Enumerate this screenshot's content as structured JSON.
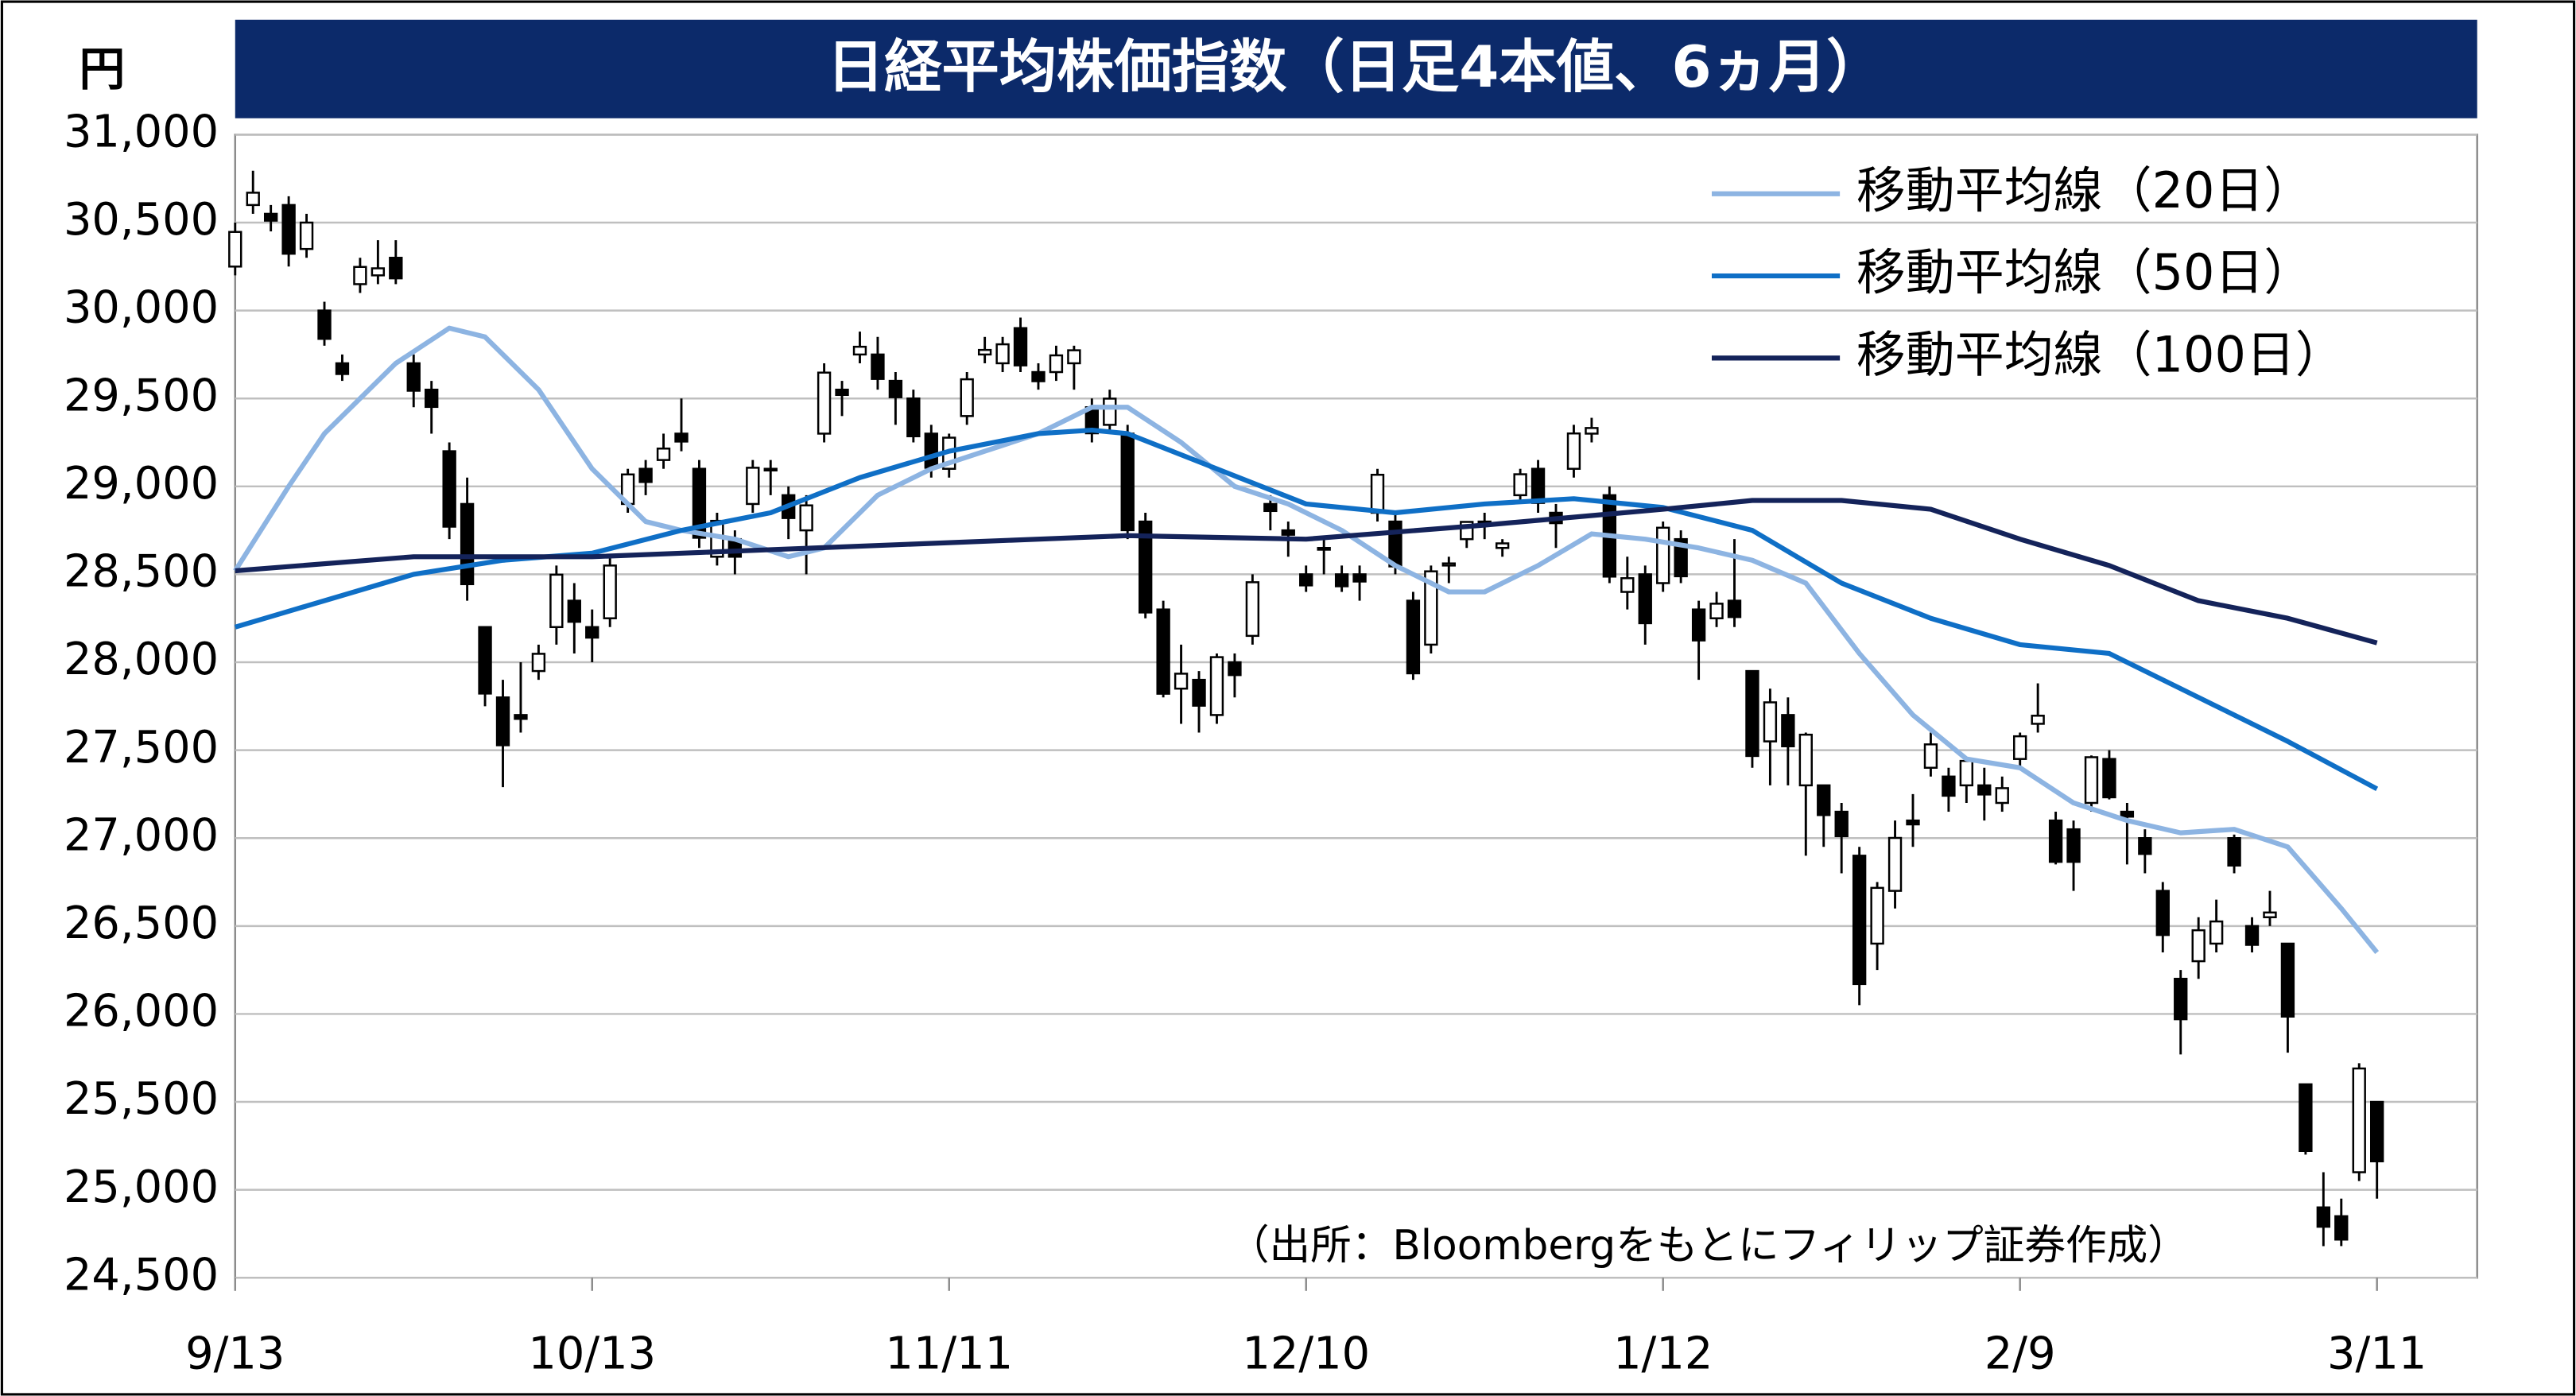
{
  "chart_data": {
    "type": "candlestick",
    "title": "日経平均株価指数（日足4本値、6ヵ月）",
    "y_unit_label": "円",
    "source": "（出所：Bloombergをもとにフィリップ証券作成）",
    "categories": [
      "9/13",
      null,
      null,
      null,
      null,
      null,
      null,
      null,
      null,
      null,
      null,
      null,
      null,
      null,
      null,
      null,
      null,
      null,
      null,
      null,
      "10/13",
      null,
      null,
      null,
      null,
      null,
      null,
      null,
      null,
      null,
      null,
      null,
      null,
      null,
      null,
      null,
      null,
      null,
      null,
      null,
      "11/11",
      null,
      null,
      null,
      null,
      null,
      null,
      null,
      null,
      null,
      null,
      null,
      null,
      null,
      null,
      null,
      null,
      null,
      null,
      null,
      "12/10",
      null,
      null,
      null,
      null,
      null,
      null,
      null,
      null,
      null,
      null,
      null,
      null,
      null,
      null,
      null,
      null,
      null,
      null,
      null,
      "1/12",
      null,
      null,
      null,
      null,
      null,
      null,
      null,
      null,
      null,
      null,
      null,
      null,
      null,
      null,
      null,
      null,
      null,
      null,
      null,
      "2/9",
      null,
      null,
      null,
      null,
      null,
      null,
      null,
      null,
      null,
      null,
      null,
      null,
      null,
      null,
      null,
      null,
      null,
      null,
      null,
      "3/11"
    ],
    "open": [
      30250,
      30600,
      30550,
      30600,
      30350,
      30000,
      29700,
      30150,
      30200,
      30300,
      29700,
      29550,
      29200,
      28900,
      28200,
      27800,
      27700,
      27950,
      28200,
      28350,
      28200,
      28250,
      28900,
      29100,
      29150,
      29300,
      29100,
      28600,
      28700,
      28900,
      29100,
      28950,
      28750,
      29300,
      29550,
      29750,
      29750,
      29600,
      29500,
      29300,
      29100,
      29400,
      29750,
      29700,
      29900,
      29650,
      29650,
      29700,
      29450,
      29350,
      29300,
      28800,
      28300,
      27850,
      27900,
      27700,
      28000,
      28150,
      28900,
      28750,
      28500,
      28650,
      28500,
      28500,
      28850,
      28800,
      28350,
      28100,
      28550,
      28700,
      28800,
      28650,
      28950,
      29100,
      28850,
      29100,
      29300,
      28950,
      28400,
      28500,
      28450,
      28700,
      28300,
      28250,
      28350,
      27950,
      27550,
      27700,
      27300,
      27300,
      27150,
      26900,
      26400,
      26700,
      27100,
      27400,
      27350,
      27300,
      27300,
      27200,
      27450,
      27650,
      27100,
      27050,
      27200,
      27450,
      27150,
      27000,
      26700,
      26200,
      26300,
      26400,
      27000,
      26500,
      26550,
      26400,
      25600,
      24900,
      24850,
      25100,
      25500
    ],
    "high": [
      30500,
      30795,
      30600,
      30650,
      30550,
      30050,
      29750,
      30300,
      30400,
      30400,
      29750,
      29600,
      29250,
      29050,
      28200,
      27900,
      28000,
      28100,
      28550,
      28450,
      28300,
      28600,
      29100,
      29150,
      29300,
      29500,
      29150,
      28850,
      28750,
      29150,
      29150,
      29000,
      28950,
      29700,
      29600,
      29880,
      29850,
      29650,
      29550,
      29350,
      29300,
      29650,
      29850,
      29850,
      29960,
      29700,
      29800,
      29800,
      29500,
      29550,
      29350,
      28850,
      28350,
      28100,
      27950,
      28050,
      28050,
      28500,
      28950,
      28800,
      28550,
      28700,
      28550,
      28550,
      29100,
      28850,
      28400,
      28550,
      28600,
      28800,
      28850,
      28700,
      29100,
      29150,
      28900,
      29350,
      29390,
      29000,
      28600,
      28550,
      28800,
      28750,
      28350,
      28400,
      28700,
      27950,
      27850,
      27800,
      27600,
      27300,
      27200,
      26950,
      26750,
      27100,
      27250,
      27600,
      27400,
      27450,
      27400,
      27350,
      27600,
      27880,
      27150,
      27100,
      27470,
      27500,
      27200,
      27050,
      26750,
      26250,
      26550,
      26650,
      27020,
      26550,
      26700,
      26400,
      25600,
      25100,
      24950,
      25720,
      25500
    ],
    "low": [
      30200,
      30550,
      30450,
      30250,
      30300,
      29800,
      29600,
      30100,
      30150,
      30150,
      29450,
      29300,
      28700,
      28350,
      27750,
      27290,
      27600,
      27900,
      28100,
      28050,
      28000,
      28200,
      28850,
      28950,
      29100,
      29200,
      28650,
      28550,
      28500,
      28850,
      28950,
      28700,
      28500,
      29250,
      29400,
      29700,
      29550,
      29350,
      29250,
      29050,
      29050,
      29350,
      29700,
      29650,
      29650,
      29550,
      29600,
      29550,
      29250,
      29300,
      28700,
      28250,
      27800,
      27650,
      27600,
      27650,
      27800,
      28100,
      28750,
      28600,
      28400,
      28500,
      28400,
      28350,
      28800,
      28500,
      27900,
      28050,
      28450,
      28650,
      28700,
      28600,
      28900,
      28850,
      28650,
      29050,
      29250,
      28450,
      28300,
      28100,
      28400,
      28450,
      27900,
      28200,
      28200,
      27400,
      27300,
      27300,
      26900,
      26950,
      26800,
      26050,
      26250,
      26600,
      26950,
      27350,
      27150,
      27200,
      27100,
      27150,
      27400,
      27600,
      26850,
      26700,
      27150,
      27220,
      26850,
      26800,
      26350,
      25770,
      26200,
      26350,
      26800,
      26350,
      26500,
      25780,
      25200,
      24680,
      24680,
      25050,
      24950
    ],
    "close": [
      30447,
      30670,
      30511,
      30323,
      30500,
      29839,
      29639,
      30248,
      30240,
      30183,
      29544,
      29452,
      28771,
      28444,
      27822,
      27528,
      27678,
      28048,
      28498,
      28230,
      28140,
      28550,
      29068,
      29025,
      29215,
      29255,
      28708,
      28804,
      28600,
      29106,
      29098,
      28820,
      28892,
      29647,
      29520,
      29794,
      29611,
      29507,
      29285,
      29106,
      29277,
      29609,
      29776,
      29808,
      29688,
      29598,
      29745,
      29774,
      29302,
      29499,
      28751,
      28283,
      27821,
      27935,
      27753,
      28029,
      27927,
      28455,
      28860,
      28725,
      28437,
      28640,
      28432,
      28459,
      29066,
      28545,
      27937,
      28517,
      28562,
      28798,
      28782,
      28676,
      29069,
      28906,
      28791,
      29301,
      29332,
      28487,
      28478,
      28222,
      28765,
      28489,
      28124,
      28333,
      28257,
      27467,
      27772,
      27522,
      27588,
      27131,
      27011,
      26170,
      26717,
      27001,
      27078,
      27533,
      27241,
      27439,
      27248,
      27284,
      27579,
      27696,
      26865,
      26865,
      27460,
      27232,
      27122,
      26910,
      26449,
      25970,
      26476,
      26526,
      26844,
      26393,
      26577,
      25985,
      25221,
      24790,
      24717,
      25690,
      25162
    ],
    "up_color": "#ffffff",
    "down_color": "#000000",
    "series": [
      {
        "name": "移動平均線（20日）",
        "color": "#8db4e2",
        "x": [
          0,
          3,
          5,
          9,
          12,
          14,
          17,
          20,
          23,
          25,
          28,
          31,
          33,
          36,
          39,
          42,
          45,
          48,
          50,
          53,
          56,
          59,
          62,
          65,
          68,
          70,
          73,
          76,
          79,
          82,
          85,
          88,
          91,
          94,
          97,
          100,
          103,
          106,
          109,
          112,
          115,
          118,
          120
        ],
        "values": [
          28520,
          29000,
          29300,
          29700,
          29900,
          29850,
          29550,
          29100,
          28800,
          28750,
          28700,
          28600,
          28650,
          28950,
          29100,
          29200,
          29300,
          29450,
          29450,
          29250,
          29000,
          28900,
          28750,
          28550,
          28400,
          28400,
          28550,
          28730,
          28700,
          28650,
          28580,
          28450,
          28050,
          27700,
          27450,
          27400,
          27200,
          27100,
          27030,
          27050,
          26950,
          26600,
          26350
        ]
      },
      {
        "name": "移動平均線（50日）",
        "color": "#0f6fc6",
        "x": [
          0,
          5,
          10,
          15,
          20,
          25,
          30,
          35,
          40,
          45,
          48,
          50,
          55,
          60,
          65,
          70,
          75,
          80,
          85,
          90,
          95,
          100,
          105,
          110,
          115,
          120
        ],
        "values": [
          28200,
          28350,
          28500,
          28580,
          28620,
          28750,
          28850,
          29050,
          29200,
          29300,
          29320,
          29300,
          29100,
          28900,
          28850,
          28900,
          28930,
          28880,
          28750,
          28450,
          28250,
          28100,
          28050,
          27800,
          27550,
          27280
        ]
      },
      {
        "name": "移動平均線（100日）",
        "color": "#14235a",
        "x": [
          0,
          10,
          20,
          30,
          40,
          50,
          60,
          70,
          80,
          85,
          90,
          95,
          100,
          105,
          110,
          115,
          120
        ],
        "values": [
          28520,
          28600,
          28600,
          28640,
          28680,
          28720,
          28700,
          28780,
          28870,
          28920,
          28920,
          28870,
          28700,
          28550,
          28350,
          28250,
          28110
        ]
      }
    ],
    "ylim": [
      24500,
      31000
    ],
    "yticks": [
      {
        "value": 24500,
        "label": "24,500"
      },
      {
        "value": 25000,
        "label": "25,000"
      },
      {
        "value": 25500,
        "label": "25,500"
      },
      {
        "value": 26000,
        "label": "26,000"
      },
      {
        "value": 26500,
        "label": "26,500"
      },
      {
        "value": 27000,
        "label": "27,000"
      },
      {
        "value": 27500,
        "label": "27,500"
      },
      {
        "value": 28000,
        "label": "28,000"
      },
      {
        "value": 28500,
        "label": "28,500"
      },
      {
        "value": 29000,
        "label": "29,000"
      },
      {
        "value": 29500,
        "label": "29,500"
      },
      {
        "value": 30000,
        "label": "30,000"
      },
      {
        "value": 30500,
        "label": "30,500"
      },
      {
        "value": 31000,
        "label": "31,000"
      }
    ],
    "grid": true,
    "legend": "upper right",
    "title_color": "#0c2a6a"
  }
}
